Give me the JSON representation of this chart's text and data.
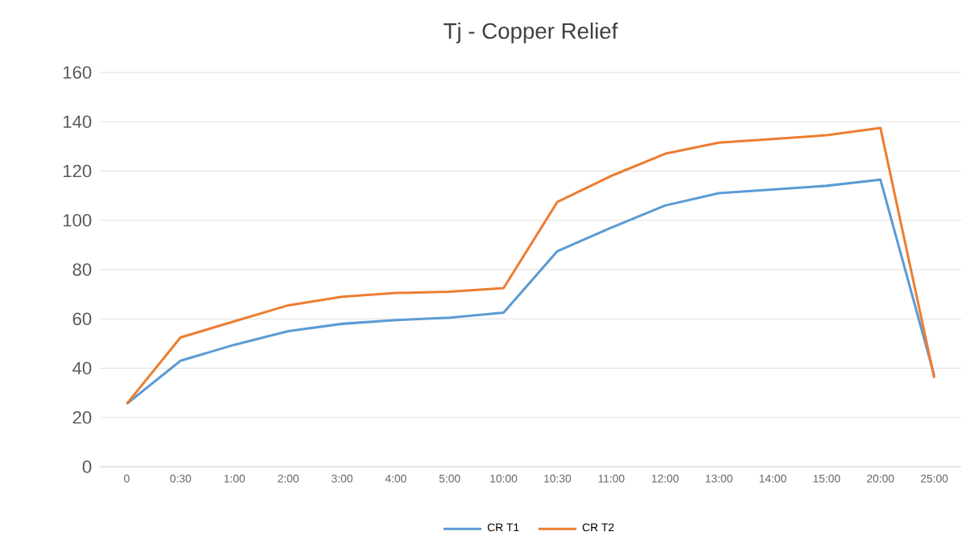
{
  "chart_data": {
    "type": "line",
    "title": "Tj - Copper Relief",
    "categories": [
      "0",
      "0:30",
      "1:00",
      "2:00",
      "3:00",
      "4:00",
      "5:00",
      "10:00",
      "10:30",
      "11:00",
      "12:00",
      "13:00",
      "14:00",
      "15:00",
      "20:00",
      "25:00"
    ],
    "series": [
      {
        "name": "CR T1",
        "color": "#5b9bd5",
        "values": [
          25.5,
          43,
          49.5,
          55,
          58,
          59.5,
          60.5,
          62.5,
          87.5,
          97,
          106,
          111,
          112.5,
          114,
          116.5,
          37
        ]
      },
      {
        "name": "CR T2",
        "color": "#ed7d31",
        "values": [
          25.5,
          52.5,
          59,
          65.5,
          69,
          70.5,
          71,
          72.5,
          107.5,
          118,
          127,
          131.5,
          133,
          134.5,
          137.5,
          36
        ]
      }
    ],
    "ylim": [
      0,
      160
    ],
    "yticks": [
      0,
      20,
      40,
      60,
      80,
      100,
      120,
      140,
      160
    ],
    "grid": "y",
    "legend": "bottom",
    "marker": "none",
    "line_style": "solid"
  }
}
